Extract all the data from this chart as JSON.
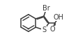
{
  "bg_color": "#ffffff",
  "bond_color": "#3a3a3a",
  "lw": 1.1,
  "fs": 7.0,
  "figsize": [
    1.12,
    0.66
  ],
  "dpi": 100,
  "bcx": 0.27,
  "bcy": 0.5,
  "br": 0.185,
  "Br_label": "Br",
  "OH_label": "OH",
  "O_label": "O",
  "S_label": "S"
}
